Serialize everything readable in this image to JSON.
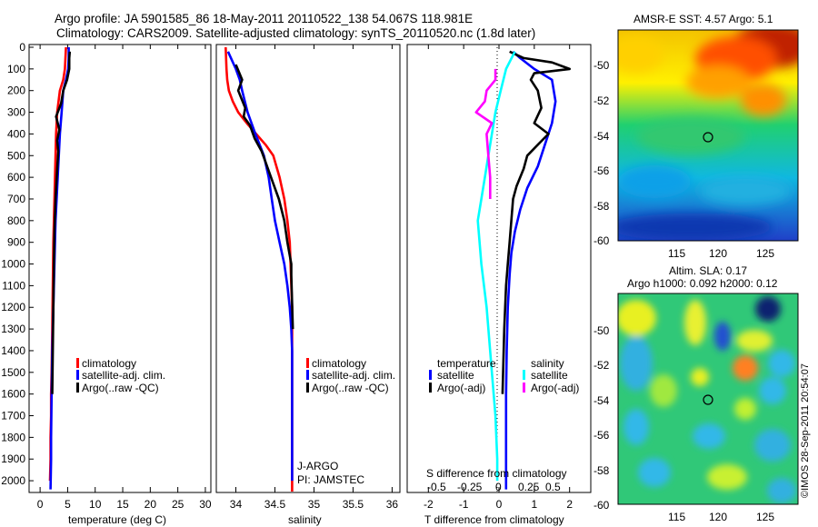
{
  "header": {
    "line1": "Argo profile: JA 5901585_86 18-May-2011 20110522_138 54.067S 118.981E",
    "line2": "Climatology: CARS2009. Satellite-adjusted climatology: synTS_20110520.nc (1.8d later)"
  },
  "colors": {
    "climatology": "#ff0000",
    "satellite": "#0000ff",
    "argo": "#000000",
    "sat_salinity": "#00ffff",
    "argo_salinity": "#ff00ff"
  },
  "chart_data": [
    {
      "type": "line",
      "id": "temperature",
      "xlabel": "temperature (deg C)",
      "xlim": [
        -2,
        31
      ],
      "ylim": [
        0,
        2050
      ],
      "xticks": [
        0,
        5,
        10,
        15,
        20,
        25,
        30
      ],
      "yticks": [
        0,
        100,
        200,
        300,
        400,
        500,
        600,
        700,
        800,
        900,
        1000,
        1100,
        1200,
        1300,
        1400,
        1500,
        1600,
        1700,
        1800,
        1900,
        2000
      ],
      "legend": [
        "climatology",
        "satellite-adj. clim.",
        "Argo(..raw -QC)"
      ],
      "series": [
        {
          "name": "climatology",
          "color": "#ff0000",
          "x": [
            4.7,
            4.6,
            4.5,
            4.2,
            3.6,
            3.1,
            2.9,
            2.8,
            2.7,
            2.6,
            2.4,
            2.3,
            2.2,
            2.1,
            2.0,
            2.0,
            1.9,
            1.9,
            1.8
          ],
          "y": [
            0,
            50,
            100,
            150,
            200,
            300,
            400,
            500,
            600,
            700,
            900,
            1100,
            1300,
            1500,
            1600,
            1700,
            1800,
            1900,
            2000
          ]
        },
        {
          "name": "satellite-adj. clim.",
          "color": "#0000ff",
          "x": [
            5.2,
            5.2,
            5.1,
            4.7,
            4.2,
            3.9,
            3.6,
            3.4,
            3.2,
            3.0,
            2.8,
            2.6,
            2.4,
            2.2,
            2.1,
            2.0,
            2.0,
            1.9
          ],
          "y": [
            0,
            50,
            100,
            150,
            200,
            300,
            400,
            500,
            600,
            700,
            800,
            1000,
            1200,
            1400,
            1600,
            1800,
            1900,
            2040
          ]
        },
        {
          "name": "Argo(..raw -QC)",
          "color": "#000000",
          "x": [
            5.4,
            5.3,
            5.3,
            4.9,
            4.2,
            3.8,
            2.9,
            3.5,
            3.1,
            3.3,
            3.1,
            2.8,
            2.6,
            2.5,
            2.4,
            2.3,
            2.2
          ],
          "y": [
            20,
            50,
            100,
            150,
            200,
            260,
            320,
            380,
            430,
            480,
            560,
            700,
            850,
            1000,
            1200,
            1400,
            1600
          ]
        }
      ]
    },
    {
      "type": "line",
      "id": "salinity",
      "xlabel": "salinity",
      "xlim": [
        33.75,
        36.1
      ],
      "ylim": [
        0,
        2050
      ],
      "xticks": [
        34,
        34.5,
        35,
        35.5,
        36
      ],
      "legend": [
        "climatology",
        "satellite-adj. clim.",
        "Argo(..raw -QC)"
      ],
      "annotations": [
        "J-ARGO",
        "PI: JAMSTEC"
      ],
      "series": [
        {
          "name": "climatology",
          "color": "#ff0000",
          "x": [
            33.87,
            33.88,
            33.89,
            33.91,
            33.96,
            34.03,
            34.14,
            34.26,
            34.38,
            34.48,
            34.56,
            34.62,
            34.66,
            34.69,
            34.7,
            34.71,
            34.72,
            34.72,
            34.72
          ],
          "y": [
            0,
            100,
            150,
            200,
            250,
            300,
            350,
            400,
            450,
            500,
            600,
            700,
            800,
            900,
            1000,
            1100,
            1200,
            1400,
            2050
          ]
        },
        {
          "name": "satellite-adj. clim.",
          "color": "#0000ff",
          "x": [
            33.9,
            34.0,
            34.05,
            34.08,
            34.15,
            34.25,
            34.36,
            34.42,
            34.46,
            34.5,
            34.56,
            34.62,
            34.66,
            34.69,
            34.71,
            34.72,
            34.72
          ],
          "y": [
            20,
            100,
            150,
            200,
            300,
            400,
            500,
            600,
            700,
            800,
            900,
            1000,
            1100,
            1200,
            1300,
            1400,
            2000
          ]
        },
        {
          "name": "Argo(..raw -QC)",
          "color": "#000000",
          "x": [
            34.0,
            34.08,
            34.03,
            34.12,
            34.1,
            34.18,
            34.24,
            34.33,
            34.4,
            34.47,
            34.55,
            34.62,
            34.66,
            34.71,
            34.71,
            34.73
          ],
          "y": [
            80,
            150,
            200,
            280,
            320,
            360,
            420,
            480,
            550,
            620,
            700,
            800,
            900,
            1000,
            1050,
            1300
          ]
        }
      ]
    },
    {
      "type": "line",
      "id": "difference",
      "xlabel": "T difference from climatology",
      "top_axis_label": "S difference from climatology",
      "xlim": [
        -2.6,
        2.6
      ],
      "ylim": [
        0,
        2050
      ],
      "xticks": [
        -2,
        -1,
        0,
        1,
        2
      ],
      "top_ticks": [
        "-0.5",
        "-0.25",
        "0",
        "0.25",
        "0.5"
      ],
      "legend_left_title": "temperature",
      "legend_right_title": "salinity",
      "legend": [
        "satellite",
        "Argo(-adj)",
        "satellite",
        "Argo(-adj)"
      ],
      "series": [
        {
          "name": "satellite",
          "color": "#0000ff",
          "x": [
            0.4,
            0.6,
            1.0,
            1.5,
            1.6,
            1.5,
            1.3,
            1.1,
            0.8,
            0.6,
            0.45,
            0.35,
            0.3,
            0.25,
            0.22,
            0.2,
            0.2
          ],
          "y": [
            20,
            50,
            100,
            150,
            250,
            350,
            450,
            550,
            650,
            750,
            850,
            950,
            1050,
            1200,
            1400,
            1600,
            2040
          ]
        },
        {
          "name": "Argo(-adj)",
          "color": "#000000",
          "x": [
            0.3,
            0.7,
            1.5,
            2.0,
            1.0,
            0.9,
            1.1,
            1.2,
            1.0,
            1.4,
            1.1,
            0.8,
            0.7,
            0.5,
            0.4,
            0.35,
            0.3,
            0.25,
            0.2,
            0.15,
            0.1
          ],
          "y": [
            20,
            50,
            70,
            100,
            120,
            150,
            200,
            280,
            350,
            400,
            450,
            500,
            560,
            640,
            700,
            800,
            900,
            1000,
            1100,
            1300,
            1600
          ]
        },
        {
          "name": "satellite",
          "color": "#00ffff",
          "x": [
            0.45,
            0.2,
            0.05,
            -0.1,
            -0.2,
            -0.3,
            -0.4,
            -0.5,
            -0.6,
            -0.5,
            -0.35,
            -0.2,
            -0.1,
            -0.05,
            -0.05
          ],
          "y": [
            20,
            100,
            200,
            300,
            400,
            500,
            600,
            700,
            800,
            1000,
            1200,
            1500,
            1700,
            1900,
            2000
          ]
        },
        {
          "name": "Argo(-adj)",
          "color": "#ff00ff",
          "x": [
            -0.1,
            -0.1,
            -0.35,
            -0.4,
            -0.65,
            -0.2,
            -0.35,
            -0.3,
            -0.25,
            -0.25
          ],
          "y": [
            100,
            150,
            200,
            250,
            300,
            350,
            400,
            500,
            600,
            700
          ]
        }
      ]
    }
  ],
  "maps": [
    {
      "id": "sst-map",
      "title": "AMSR-E SST: 4.57 Argo: 5.1",
      "xticks": [
        "115",
        "120",
        "125"
      ],
      "yticks": [
        "-50",
        "-52",
        "-54",
        "-56",
        "-58",
        "-60"
      ]
    },
    {
      "id": "sla-map",
      "title1": "Altim. SLA: 0.17",
      "title2": "Argo h1000: 0.092 h2000: 0.12",
      "xticks": [
        "115",
        "120",
        "125"
      ],
      "yticks": [
        "-50",
        "-52",
        "-54",
        "-56",
        "-58",
        "-60"
      ]
    }
  ],
  "credit": "©IMOS 28-Sep-2011 20:54:07"
}
